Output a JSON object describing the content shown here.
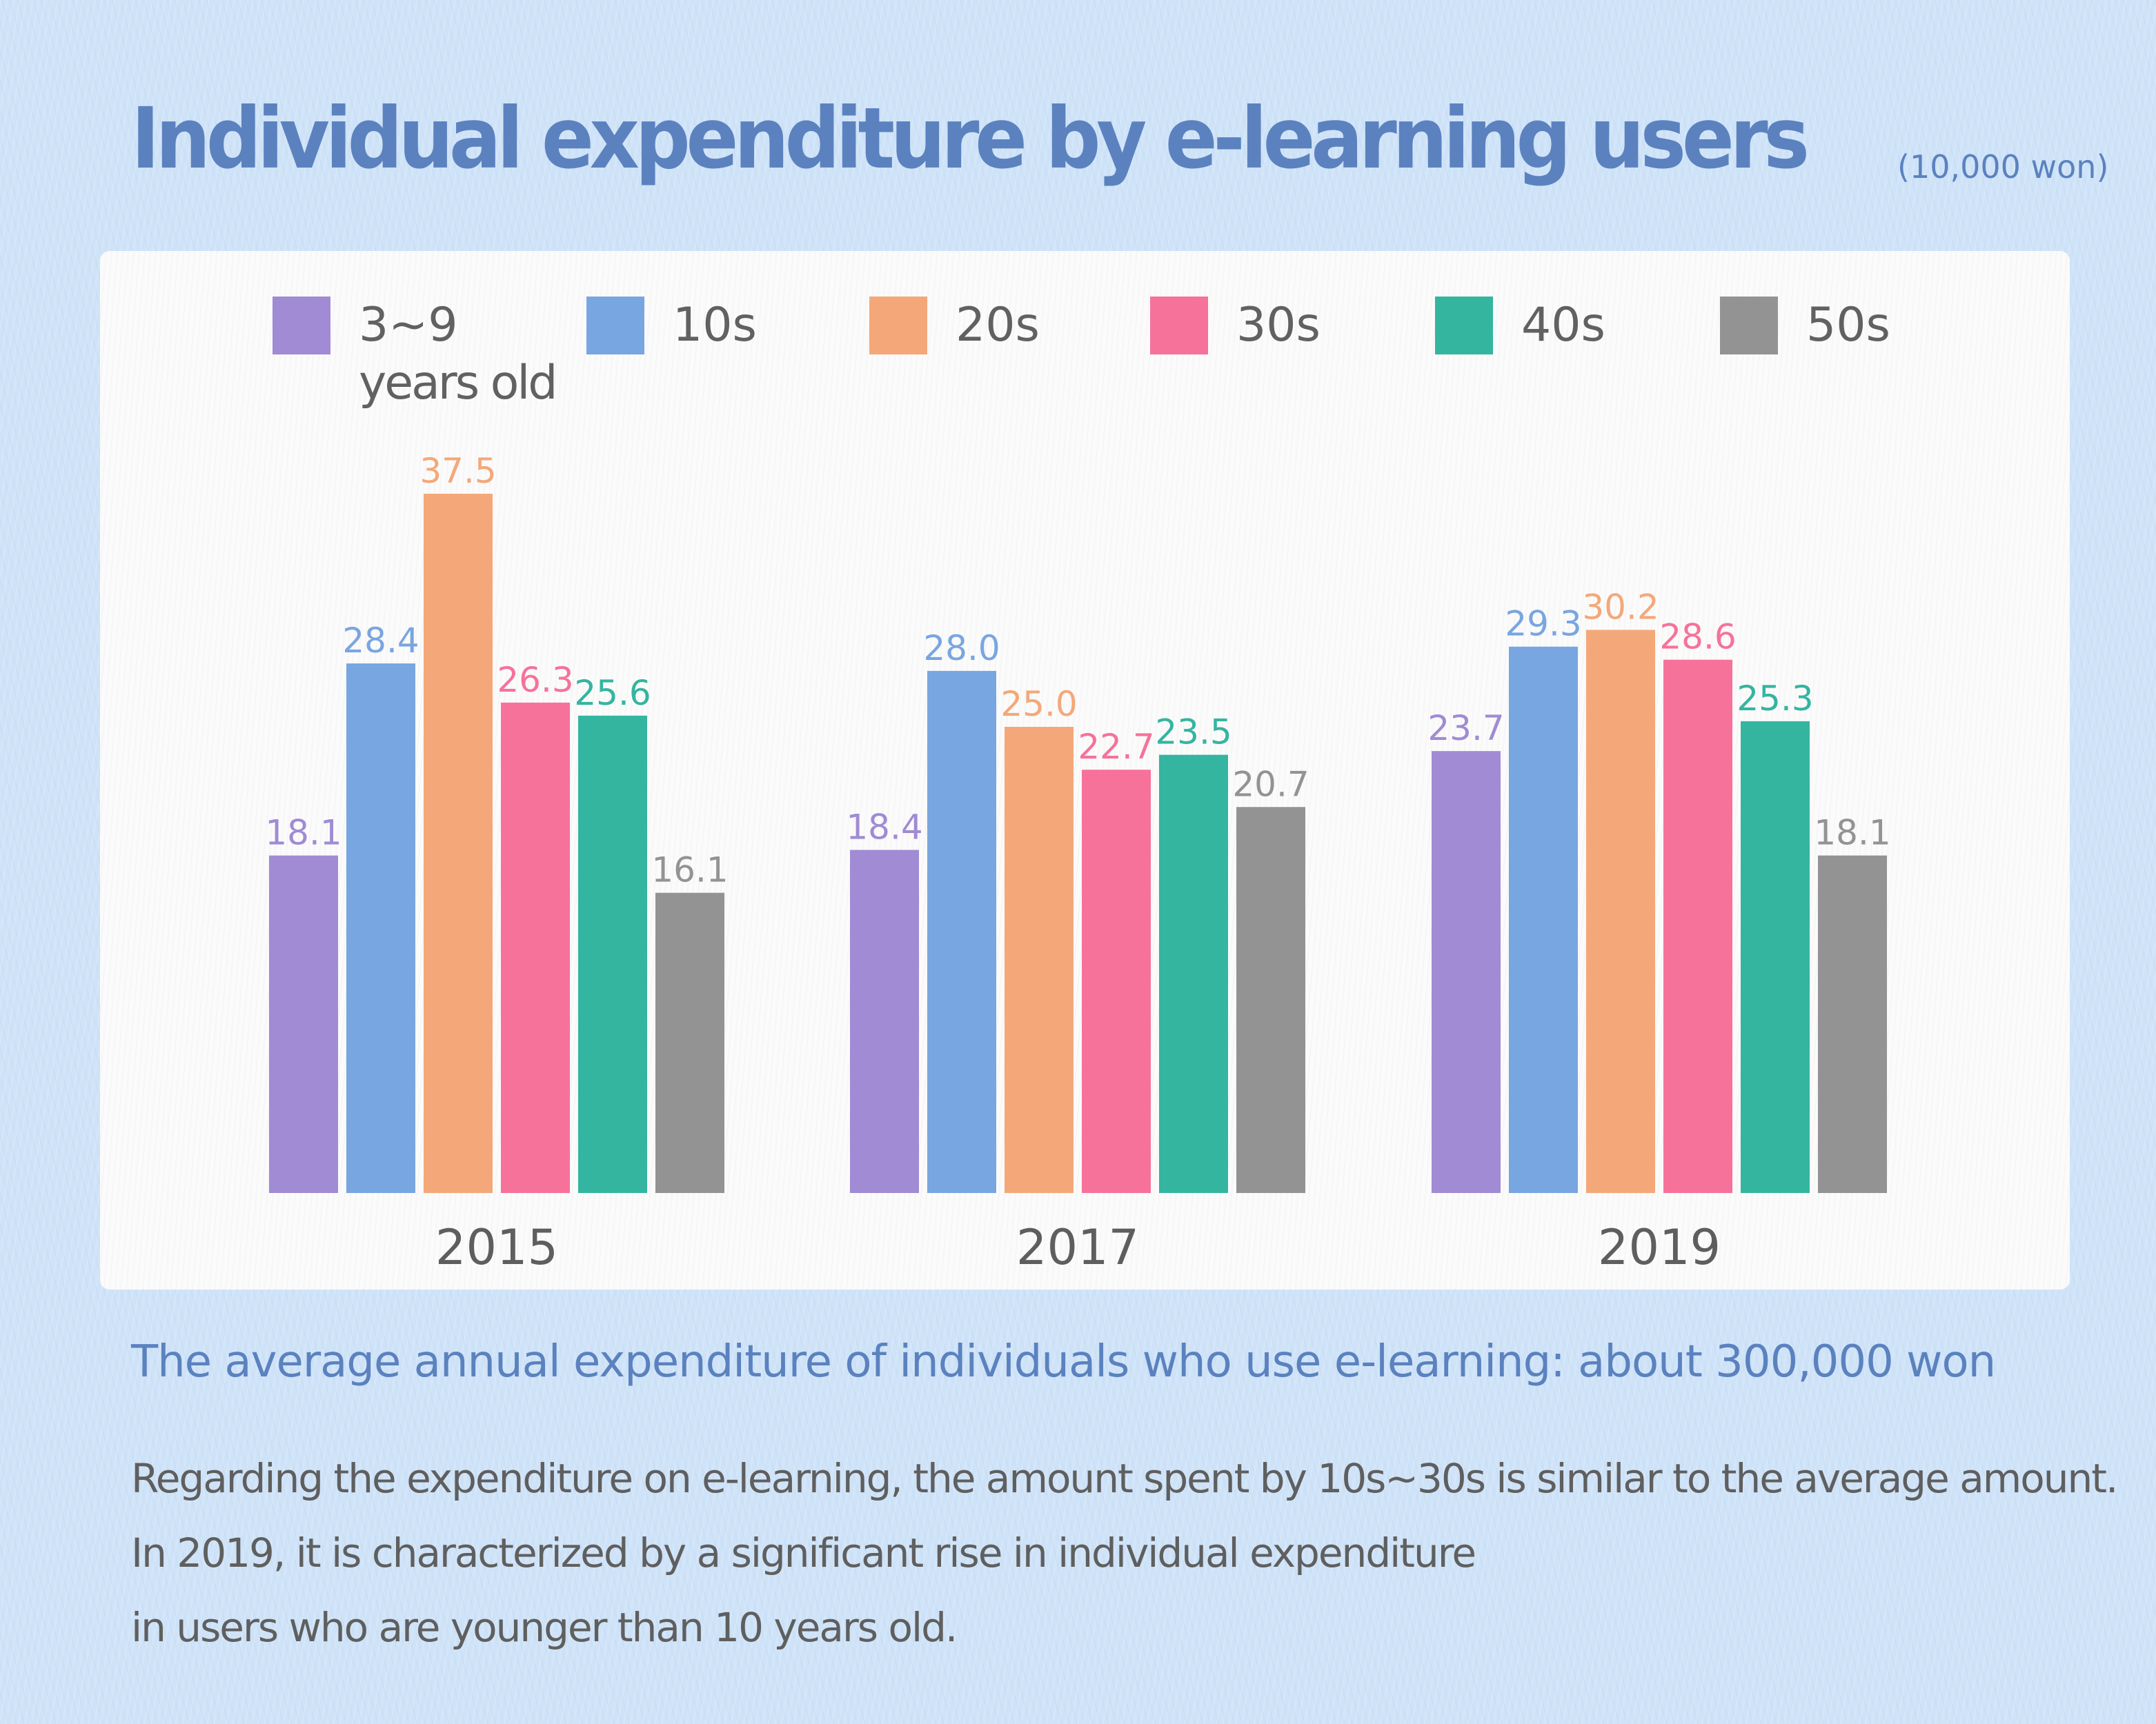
{
  "title": "Individual expenditure by e-learning users",
  "unit_note": "(10,000 won)",
  "legend": [
    {
      "label": "3~9",
      "sub": "years old",
      "color": "#a08bd4"
    },
    {
      "label": "10s",
      "sub": "",
      "color": "#78a6e0"
    },
    {
      "label": "20s",
      "sub": "",
      "color": "#f4a879"
    },
    {
      "label": "30s",
      "sub": "",
      "color": "#f6729a"
    },
    {
      "label": "40s",
      "sub": "",
      "color": "#34b5a0"
    },
    {
      "label": "50s",
      "sub": "",
      "color": "#939393"
    }
  ],
  "chart_data": {
    "type": "bar",
    "title": "Individual expenditure by e-learning users",
    "subtitle": "(10,000 won)",
    "xlabel": "",
    "ylabel": "",
    "categories": [
      "2015",
      "2017",
      "2019"
    ],
    "series": [
      {
        "name": "3~9 years old",
        "color": "#a08bd4",
        "values": [
          18.1,
          18.4,
          23.7
        ]
      },
      {
        "name": "10s",
        "color": "#78a6e0",
        "values": [
          28.4,
          28.0,
          29.3
        ]
      },
      {
        "name": "20s",
        "color": "#f4a879",
        "values": [
          37.5,
          25.0,
          30.2
        ]
      },
      {
        "name": "30s",
        "color": "#f6729a",
        "values": [
          26.3,
          22.7,
          28.6
        ]
      },
      {
        "name": "40s",
        "color": "#34b5a0",
        "values": [
          25.6,
          23.5,
          25.3
        ]
      },
      {
        "name": "50s",
        "color": "#939393",
        "values": [
          16.1,
          20.7,
          18.1
        ]
      }
    ],
    "data_labels": true,
    "grid": false,
    "legend_position": "top",
    "ylim": [
      0,
      40
    ]
  },
  "summary": "The average annual expenditure of individuals who use e-learning: about 300,000 won",
  "body_lines": [
    "Regarding the expenditure on e-learning, the amount spent by 10s~30s is similar to the average amount.",
    "In 2019, it is characterized by a significant rise in individual expenditure",
    "in users who are younger than 10 years old."
  ]
}
